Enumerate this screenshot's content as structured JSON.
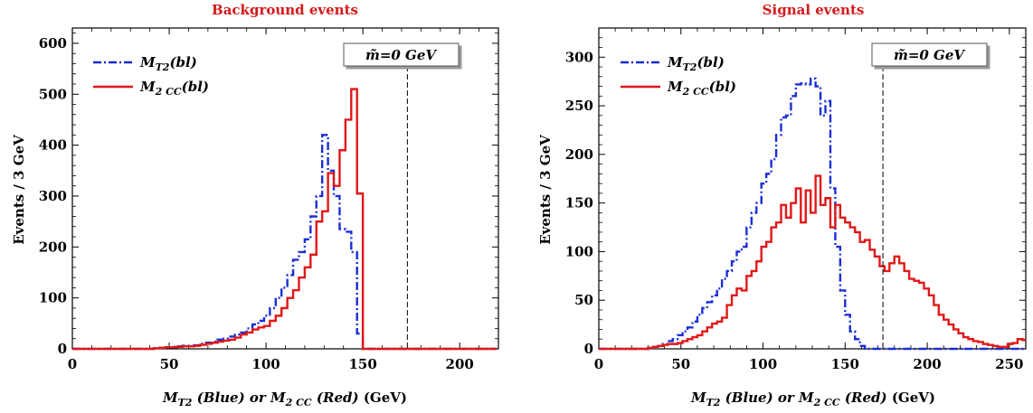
{
  "colors": {
    "blue": "#1a2ed6",
    "red": "#e01818",
    "title": "#d41a1a"
  },
  "chart_data": [
    {
      "type": "line",
      "title": "Background events",
      "xlabel": "M_T2 (Blue) or M_2CC (Red) (GeV)",
      "ylabel": "Events / 3 GeV",
      "xlim": [
        0,
        220
      ],
      "ylim": [
        0,
        630
      ],
      "xticks": [
        0,
        50,
        100,
        150,
        200
      ],
      "yticks": [
        0,
        100,
        200,
        300,
        400,
        500,
        600
      ],
      "annotation": "m̃=0 GeV",
      "vline": 173,
      "bin_width": 3,
      "legend": [
        "M_T2(bl)",
        "M_2CC(bl)"
      ],
      "legend_position": "top-left",
      "series": [
        {
          "name": "M_T2(bl)",
          "style": "dash-dot",
          "color": "#1a2ed6",
          "x0": 0,
          "values": [
            0,
            0,
            0,
            0,
            0,
            0,
            0,
            0,
            0,
            0,
            0,
            0,
            0,
            0,
            1,
            2,
            3,
            4,
            5,
            6,
            6,
            7,
            10,
            12,
            14,
            18,
            20,
            24,
            28,
            32,
            40,
            48,
            55,
            65,
            80,
            100,
            120,
            145,
            175,
            190,
            215,
            260,
            300,
            420,
            350,
            300,
            235,
            230,
            190,
            30,
            0,
            0,
            0,
            0,
            0,
            0,
            0,
            0,
            0,
            0,
            0,
            0,
            0,
            0,
            0,
            0,
            0,
            0,
            0,
            0,
            0,
            0,
            0
          ]
        },
        {
          "name": "M_2CC(bl)",
          "style": "solid",
          "color": "#e01818",
          "x0": 0,
          "values": [
            0,
            0,
            0,
            0,
            0,
            0,
            0,
            0,
            0,
            0,
            0,
            0,
            0,
            0,
            1,
            2,
            3,
            3,
            4,
            5,
            5,
            6,
            8,
            10,
            12,
            14,
            16,
            18,
            22,
            28,
            32,
            38,
            42,
            45,
            55,
            65,
            80,
            100,
            115,
            140,
            160,
            185,
            250,
            270,
            345,
            320,
            390,
            450,
            510,
            305,
            0,
            0,
            0,
            0,
            0,
            0,
            0,
            0,
            0,
            0,
            0,
            0,
            0,
            0,
            0,
            0,
            0,
            0,
            0,
            0,
            0,
            0,
            0
          ]
        }
      ]
    },
    {
      "type": "line",
      "title": "Signal events",
      "xlabel": "M_T2 (Blue) or M_2CC (Red) (GeV)",
      "ylabel": "Events / 3 GeV",
      "xlim": [
        0,
        260
      ],
      "ylim": [
        0,
        330
      ],
      "xticks": [
        0,
        50,
        100,
        150,
        200,
        250
      ],
      "yticks": [
        0,
        50,
        100,
        150,
        200,
        250,
        300
      ],
      "annotation": "m̃=0 GeV",
      "vline": 173,
      "bin_width": 3,
      "legend": [
        "M_T2(bl)",
        "M_2CC(bl)"
      ],
      "legend_position": "top-left",
      "series": [
        {
          "name": "M_T2(bl)",
          "style": "dash-dot",
          "color": "#1a2ed6",
          "x0": 0,
          "values": [
            0,
            0,
            0,
            0,
            0,
            0,
            0,
            0,
            0,
            0,
            1,
            2,
            3,
            5,
            8,
            10,
            14,
            18,
            22,
            28,
            35,
            42,
            48,
            55,
            62,
            72,
            80,
            90,
            100,
            105,
            125,
            140,
            150,
            170,
            180,
            195,
            220,
            238,
            240,
            260,
            272,
            273,
            272,
            278,
            270,
            240,
            255,
            165,
            105,
            60,
            35,
            18,
            10,
            3,
            0,
            0,
            0,
            0,
            0,
            0,
            0,
            0,
            0,
            0,
            0,
            0,
            0,
            0,
            0,
            0,
            0,
            0,
            0,
            0,
            0,
            0,
            0,
            0,
            0,
            0,
            0,
            0,
            0,
            0,
            0,
            0,
            0
          ]
        },
        {
          "name": "M_2CC(bl)",
          "style": "solid",
          "color": "#e01818",
          "x0": 0,
          "values": [
            0,
            0,
            0,
            0,
            0,
            0,
            0,
            0,
            0,
            0,
            1,
            2,
            3,
            4,
            5,
            5,
            6,
            8,
            10,
            12,
            14,
            18,
            22,
            26,
            28,
            32,
            45,
            55,
            62,
            60,
            75,
            80,
            90,
            105,
            110,
            125,
            130,
            148,
            135,
            150,
            165,
            130,
            163,
            140,
            178,
            148,
            155,
            125,
            148,
            135,
            130,
            125,
            120,
            110,
            112,
            102,
            95,
            85,
            80,
            88,
            95,
            88,
            80,
            72,
            70,
            68,
            62,
            55,
            45,
            35,
            30,
            25,
            20,
            16,
            12,
            10,
            8,
            7,
            5,
            4,
            3,
            2,
            2,
            5,
            6,
            10,
            9
          ]
        }
      ]
    }
  ]
}
